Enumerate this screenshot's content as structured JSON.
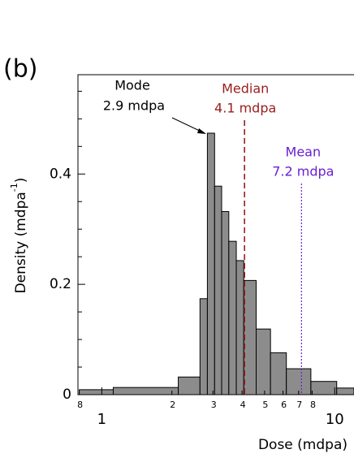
{
  "chart_data": {
    "type": "histogram",
    "panel_label": "(b)",
    "ylabel": [
      "Density (mdpa",
      "-1",
      ")"
    ],
    "xlabel": "Dose (mdpa)",
    "bins": [
      0.8,
      1.12,
      2.13,
      2.64,
      2.84,
      3.05,
      3.27,
      3.51,
      3.78,
      4.07,
      4.6,
      5.3,
      6.2,
      7.9,
      10.2,
      12.1
    ],
    "values": [
      0.009,
      0.013,
      0.032,
      0.174,
      0.474,
      0.378,
      0.332,
      0.278,
      0.243,
      0.207,
      0.119,
      0.076,
      0.047,
      0.024,
      0.012
    ],
    "color": "#8c8c8c",
    "xscale": "log",
    "xlim": [
      0.79,
      12.1
    ],
    "ylim": [
      0,
      0.58
    ],
    "xticks": [
      1,
      10
    ],
    "xminorticks": [
      {
        "value": 0.8,
        "label": "8"
      },
      2,
      3,
      4,
      5,
      6,
      7,
      8
    ],
    "yticks": [
      0,
      0.2,
      0.4
    ],
    "yminorticks": [
      0.05,
      0.1,
      0.15,
      0.25,
      0.3,
      0.35,
      0.45,
      0.5,
      0.55
    ],
    "annotations": [
      {
        "lines": [
          "Mode",
          "2.9 mdpa"
        ],
        "value": 2.9,
        "color": "#000000"
      },
      {
        "lines": [
          "Median",
          "4.1 mdpa"
        ],
        "value": 4.1,
        "color": "#9b1c1c"
      },
      {
        "lines": [
          "Mean",
          "7.2 mdpa"
        ],
        "value": 7.2,
        "color": "#6a1fd0"
      }
    ]
  }
}
